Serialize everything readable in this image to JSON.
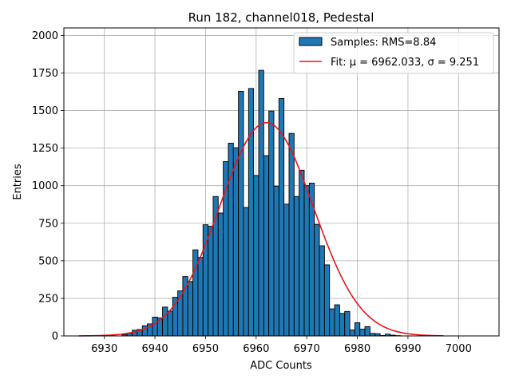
{
  "chart_data": {
    "type": "bar",
    "title": "Run 182, channel018, Pedestal",
    "xlabel": "ADC Counts",
    "ylabel": "Entries",
    "xlim": [
      6922,
      7008
    ],
    "ylim": [
      0,
      2050
    ],
    "xticks": [
      6930,
      6940,
      6950,
      6960,
      6970,
      6980,
      6990,
      7000
    ],
    "yticks": [
      0,
      250,
      500,
      750,
      1000,
      1250,
      1500,
      1750,
      2000
    ],
    "grid": true,
    "legend_position": "top-right",
    "bin_width": 1,
    "colors": {
      "bars": "#1f77b4",
      "bar_edge": "#000000",
      "fit": "#e8161b",
      "grid": "#b0b0b0"
    },
    "series": [
      {
        "name": "Samples: RMS=8.84",
        "kind": "histogram",
        "bins": [
          {
            "x": 6934,
            "y": 8
          },
          {
            "x": 6935,
            "y": 17
          },
          {
            "x": 6936,
            "y": 38
          },
          {
            "x": 6937,
            "y": 43
          },
          {
            "x": 6938,
            "y": 68
          },
          {
            "x": 6939,
            "y": 80
          },
          {
            "x": 6940,
            "y": 125
          },
          {
            "x": 6941,
            "y": 120
          },
          {
            "x": 6942,
            "y": 192
          },
          {
            "x": 6943,
            "y": 165
          },
          {
            "x": 6944,
            "y": 257
          },
          {
            "x": 6945,
            "y": 300
          },
          {
            "x": 6946,
            "y": 395
          },
          {
            "x": 6947,
            "y": 362
          },
          {
            "x": 6948,
            "y": 573
          },
          {
            "x": 6949,
            "y": 522
          },
          {
            "x": 6950,
            "y": 740
          },
          {
            "x": 6951,
            "y": 730
          },
          {
            "x": 6952,
            "y": 928
          },
          {
            "x": 6953,
            "y": 818
          },
          {
            "x": 6954,
            "y": 1160
          },
          {
            "x": 6955,
            "y": 1283
          },
          {
            "x": 6956,
            "y": 1253
          },
          {
            "x": 6957,
            "y": 1628
          },
          {
            "x": 6958,
            "y": 855
          },
          {
            "x": 6959,
            "y": 1647
          },
          {
            "x": 6960,
            "y": 1068
          },
          {
            "x": 6961,
            "y": 1768
          },
          {
            "x": 6962,
            "y": 1200
          },
          {
            "x": 6963,
            "y": 1497
          },
          {
            "x": 6964,
            "y": 997
          },
          {
            "x": 6965,
            "y": 1580
          },
          {
            "x": 6966,
            "y": 877
          },
          {
            "x": 6967,
            "y": 1348
          },
          {
            "x": 6968,
            "y": 928
          },
          {
            "x": 6969,
            "y": 1103
          },
          {
            "x": 6970,
            "y": 1000
          },
          {
            "x": 6971,
            "y": 1017
          },
          {
            "x": 6972,
            "y": 742
          },
          {
            "x": 6973,
            "y": 600
          },
          {
            "x": 6974,
            "y": 473
          },
          {
            "x": 6975,
            "y": 180
          },
          {
            "x": 6976,
            "y": 207
          },
          {
            "x": 6977,
            "y": 150
          },
          {
            "x": 6978,
            "y": 163
          },
          {
            "x": 6979,
            "y": 40
          },
          {
            "x": 6980,
            "y": 88
          },
          {
            "x": 6981,
            "y": 45
          },
          {
            "x": 6982,
            "y": 62
          },
          {
            "x": 6983,
            "y": 17
          },
          {
            "x": 6984,
            "y": 15
          },
          {
            "x": 6985,
            "y": 3
          },
          {
            "x": 6986,
            "y": 12
          },
          {
            "x": 6987,
            "y": 5
          },
          {
            "x": 6988,
            "y": 2
          }
        ]
      },
      {
        "name": "Fit: μ = 6962.033, σ = 9.251",
        "kind": "gaussian-fit",
        "mu": 6962.033,
        "sigma": 9.251,
        "amplitude": 1420,
        "x_range": [
          6925,
          6997
        ]
      }
    ]
  }
}
